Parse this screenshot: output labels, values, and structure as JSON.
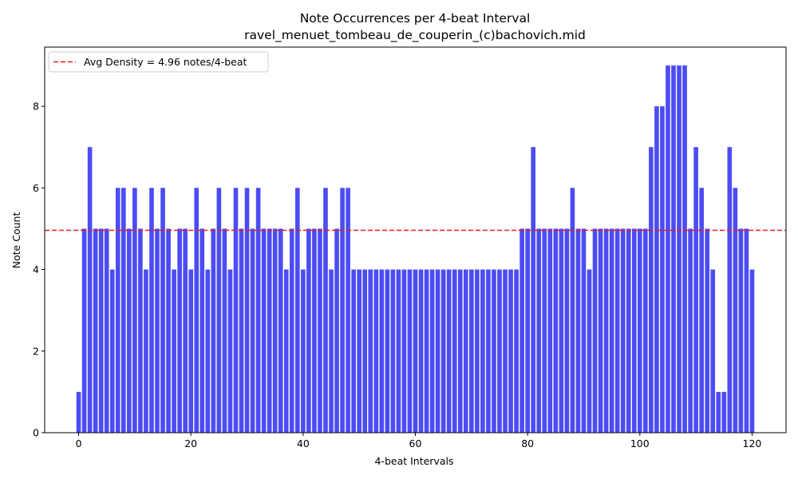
{
  "chart_data": {
    "type": "bar",
    "title": "Note Occurrences per 4-beat Interval",
    "subtitle": "ravel_menuet_tombeau_de_couperin_(c)bachovich.mid",
    "xlabel": "4-beat Intervals",
    "ylabel": "Note Count",
    "xlim": [
      -6.05,
      126.05
    ],
    "ylim": [
      0,
      9.45
    ],
    "xticks": [
      0,
      20,
      40,
      60,
      80,
      100,
      120
    ],
    "yticks": [
      0,
      2,
      4,
      6,
      8
    ],
    "bar_color": "#4c4cf5",
    "grid": false,
    "x": [
      0,
      1,
      2,
      3,
      4,
      5,
      6,
      7,
      8,
      9,
      10,
      11,
      12,
      13,
      14,
      15,
      16,
      17,
      18,
      19,
      20,
      21,
      22,
      23,
      24,
      25,
      26,
      27,
      28,
      29,
      30,
      31,
      32,
      33,
      34,
      35,
      36,
      37,
      38,
      39,
      40,
      41,
      42,
      43,
      44,
      45,
      46,
      47,
      48,
      49,
      50,
      51,
      52,
      53,
      54,
      55,
      56,
      57,
      58,
      59,
      60,
      61,
      62,
      63,
      64,
      65,
      66,
      67,
      68,
      69,
      70,
      71,
      72,
      73,
      74,
      75,
      76,
      77,
      78,
      79,
      80,
      81,
      82,
      83,
      84,
      85,
      86,
      87,
      88,
      89,
      90,
      91,
      92,
      93,
      94,
      95,
      96,
      97,
      98,
      99,
      100,
      101,
      102,
      103,
      104,
      105,
      106,
      107,
      108,
      109,
      110,
      111,
      112,
      113,
      114,
      115,
      116,
      117,
      118,
      119,
      120
    ],
    "values": [
      1,
      5,
      7,
      5,
      5,
      5,
      4,
      6,
      6,
      5,
      6,
      5,
      4,
      6,
      5,
      6,
      5,
      4,
      5,
      5,
      4,
      6,
      5,
      4,
      5,
      6,
      5,
      4,
      6,
      5,
      6,
      5,
      6,
      5,
      5,
      5,
      5,
      4,
      5,
      6,
      4,
      5,
      5,
      5,
      6,
      4,
      5,
      6,
      6,
      4,
      4,
      4,
      4,
      4,
      4,
      4,
      4,
      4,
      4,
      4,
      4,
      4,
      4,
      4,
      4,
      4,
      4,
      4,
      4,
      4,
      4,
      4,
      4,
      4,
      4,
      4,
      4,
      4,
      4,
      5,
      5,
      7,
      5,
      5,
      5,
      5,
      5,
      5,
      6,
      5,
      5,
      4,
      5,
      5,
      5,
      5,
      5,
      5,
      5,
      5,
      5,
      5,
      7,
      8,
      8,
      9,
      9,
      9,
      9,
      5,
      7,
      6,
      5,
      4,
      1,
      1,
      7,
      6,
      5,
      5,
      4
    ],
    "average": {
      "value": 4.96,
      "label": "Avg Density = 4.96 notes/4-beat",
      "color": "#e02020",
      "style": "dashed"
    },
    "legend_position": "top-left"
  }
}
